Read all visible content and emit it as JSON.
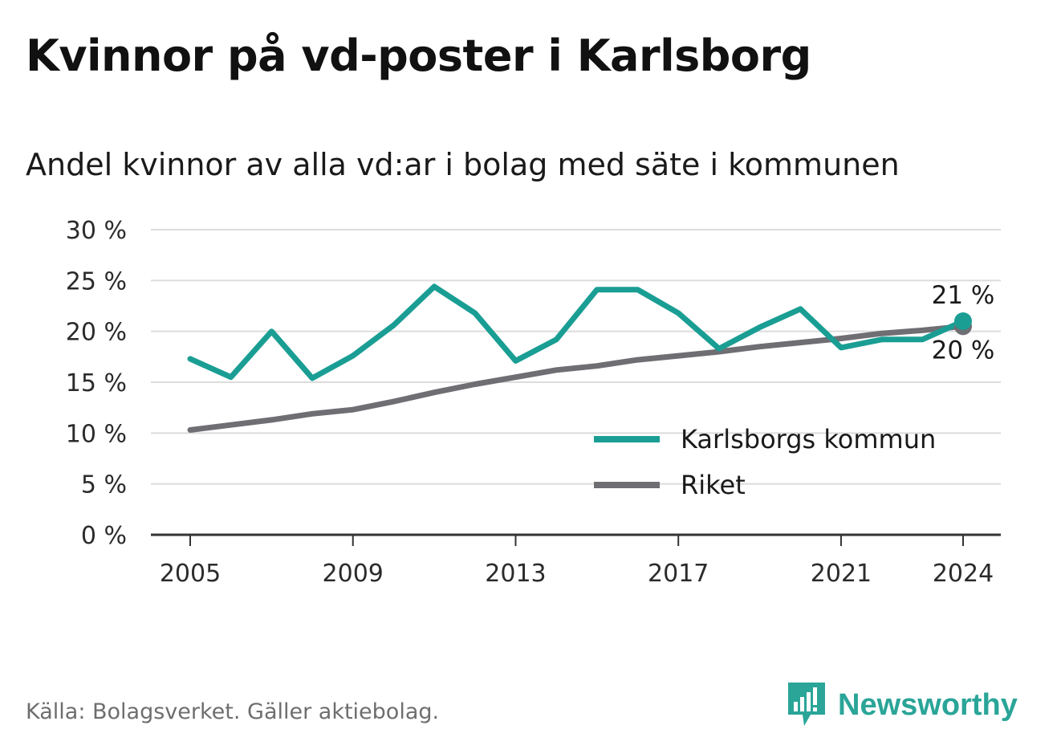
{
  "title": "Kvinnor på vd-poster i Karlsborg",
  "subtitle": "Andel kvinnor av alla vd:ar i bolag med säte i kommunen",
  "source": "Källa: Bolagsverket. Gäller aktiebolag.",
  "brand": "Newsworthy",
  "colors": {
    "kommun": "#1a9e94",
    "riket": "#6f6e73",
    "grid": "#dcdcdc",
    "axis": "#333333"
  },
  "chart_data": {
    "type": "line",
    "x": [
      2005,
      2006,
      2007,
      2008,
      2009,
      2010,
      2011,
      2012,
      2013,
      2014,
      2015,
      2016,
      2017,
      2018,
      2019,
      2020,
      2021,
      2022,
      2023,
      2024
    ],
    "series": [
      {
        "name": "Karlsborgs kommun",
        "color": "#1a9e94",
        "values": [
          17.3,
          15.5,
          20.0,
          15.4,
          17.6,
          20.6,
          24.4,
          21.8,
          17.1,
          19.2,
          24.1,
          24.1,
          21.8,
          18.3,
          20.4,
          22.2,
          18.4,
          19.2,
          19.2,
          21.0
        ]
      },
      {
        "name": "Riket",
        "color": "#6f6e73",
        "values": [
          10.3,
          10.8,
          11.3,
          11.9,
          12.3,
          13.1,
          14.0,
          14.8,
          15.5,
          16.2,
          16.6,
          17.2,
          17.6,
          18.0,
          18.5,
          18.9,
          19.3,
          19.8,
          20.1,
          20.5
        ]
      }
    ],
    "ylim": [
      0,
      30
    ],
    "yticks": [
      0,
      5,
      10,
      15,
      20,
      25,
      30
    ],
    "ytick_labels": [
      "0 %",
      "5 %",
      "10 %",
      "15 %",
      "20 %",
      "25 %",
      "30 %"
    ],
    "xticks": [
      2005,
      2009,
      2013,
      2017,
      2021,
      2024
    ],
    "xtick_labels": [
      "2005",
      "2009",
      "2013",
      "2017",
      "2021",
      "2024"
    ],
    "end_labels": {
      "kommun": "21 %",
      "riket": "20 %"
    },
    "legend": {
      "position": "bottom-right",
      "items": [
        "Karlsborgs kommun",
        "Riket"
      ]
    },
    "grid": true
  }
}
